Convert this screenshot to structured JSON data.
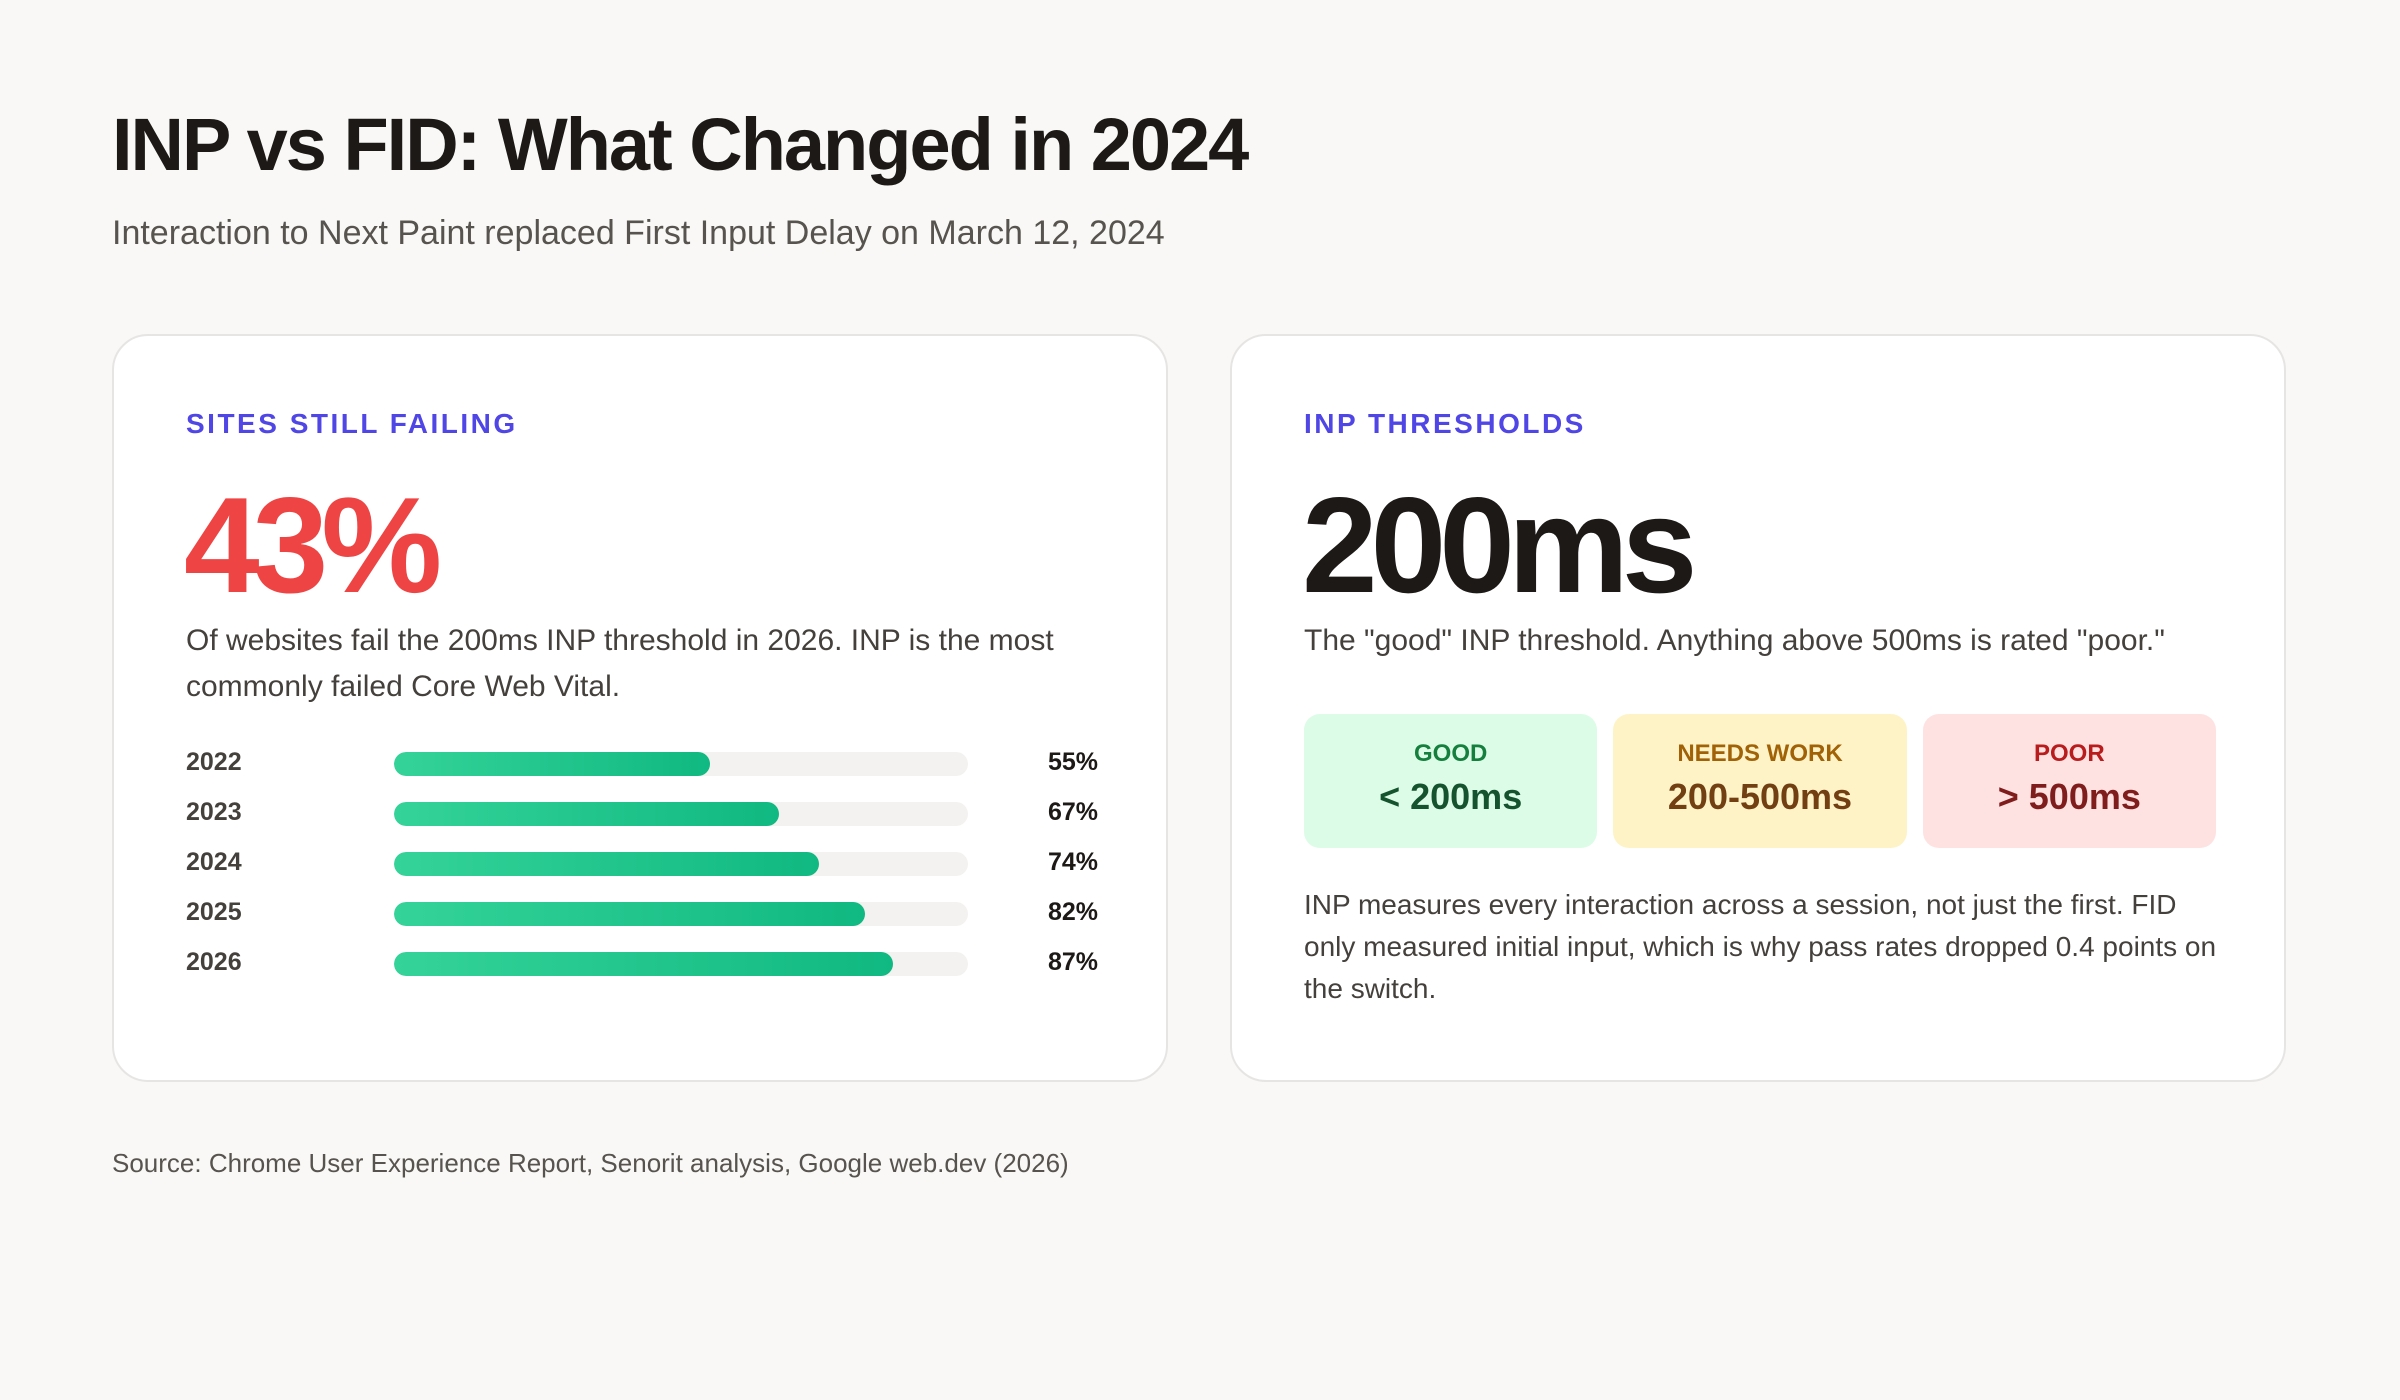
{
  "header": {
    "title": "INP vs FID: What Changed in 2024",
    "subtitle": "Interaction to Next Paint replaced First Input Delay on March 12, 2024"
  },
  "left_card": {
    "eyebrow": "SITES STILL FAILING",
    "big_value": "43%",
    "description": "Of websites fail the 200ms INP threshold in 2026. INP is the most commonly failed Core Web Vital."
  },
  "right_card": {
    "eyebrow": "INP THRESHOLDS",
    "big_value": "200ms",
    "description": "The \"good\" INP threshold. Anything above 500ms is rated \"poor.\"",
    "thresholds": [
      {
        "label": "GOOD",
        "value": "< 200ms",
        "color": "#dcfce7"
      },
      {
        "label": "NEEDS WORK",
        "value": "200-500ms",
        "color": "#fef3c7"
      },
      {
        "label": "POOR",
        "value": "> 500ms",
        "color": "#fee2e2"
      }
    ],
    "note": "INP measures every interaction across a session, not just the first. FID only measured initial input, which is why pass rates dropped 0.4 points on the switch."
  },
  "chart_data": {
    "type": "bar",
    "orientation": "horizontal",
    "categories": [
      "2022",
      "2023",
      "2024",
      "2025",
      "2026"
    ],
    "values": [
      55,
      67,
      74,
      82,
      87
    ],
    "value_labels": [
      "55%",
      "67%",
      "74%",
      "82%",
      "87%"
    ],
    "xlim": [
      0,
      100
    ],
    "bar_color": "#10b981",
    "grid": false
  },
  "footer": {
    "source": "Source: Chrome User Experience Report, Senorit analysis, Google web.dev (2026)"
  }
}
